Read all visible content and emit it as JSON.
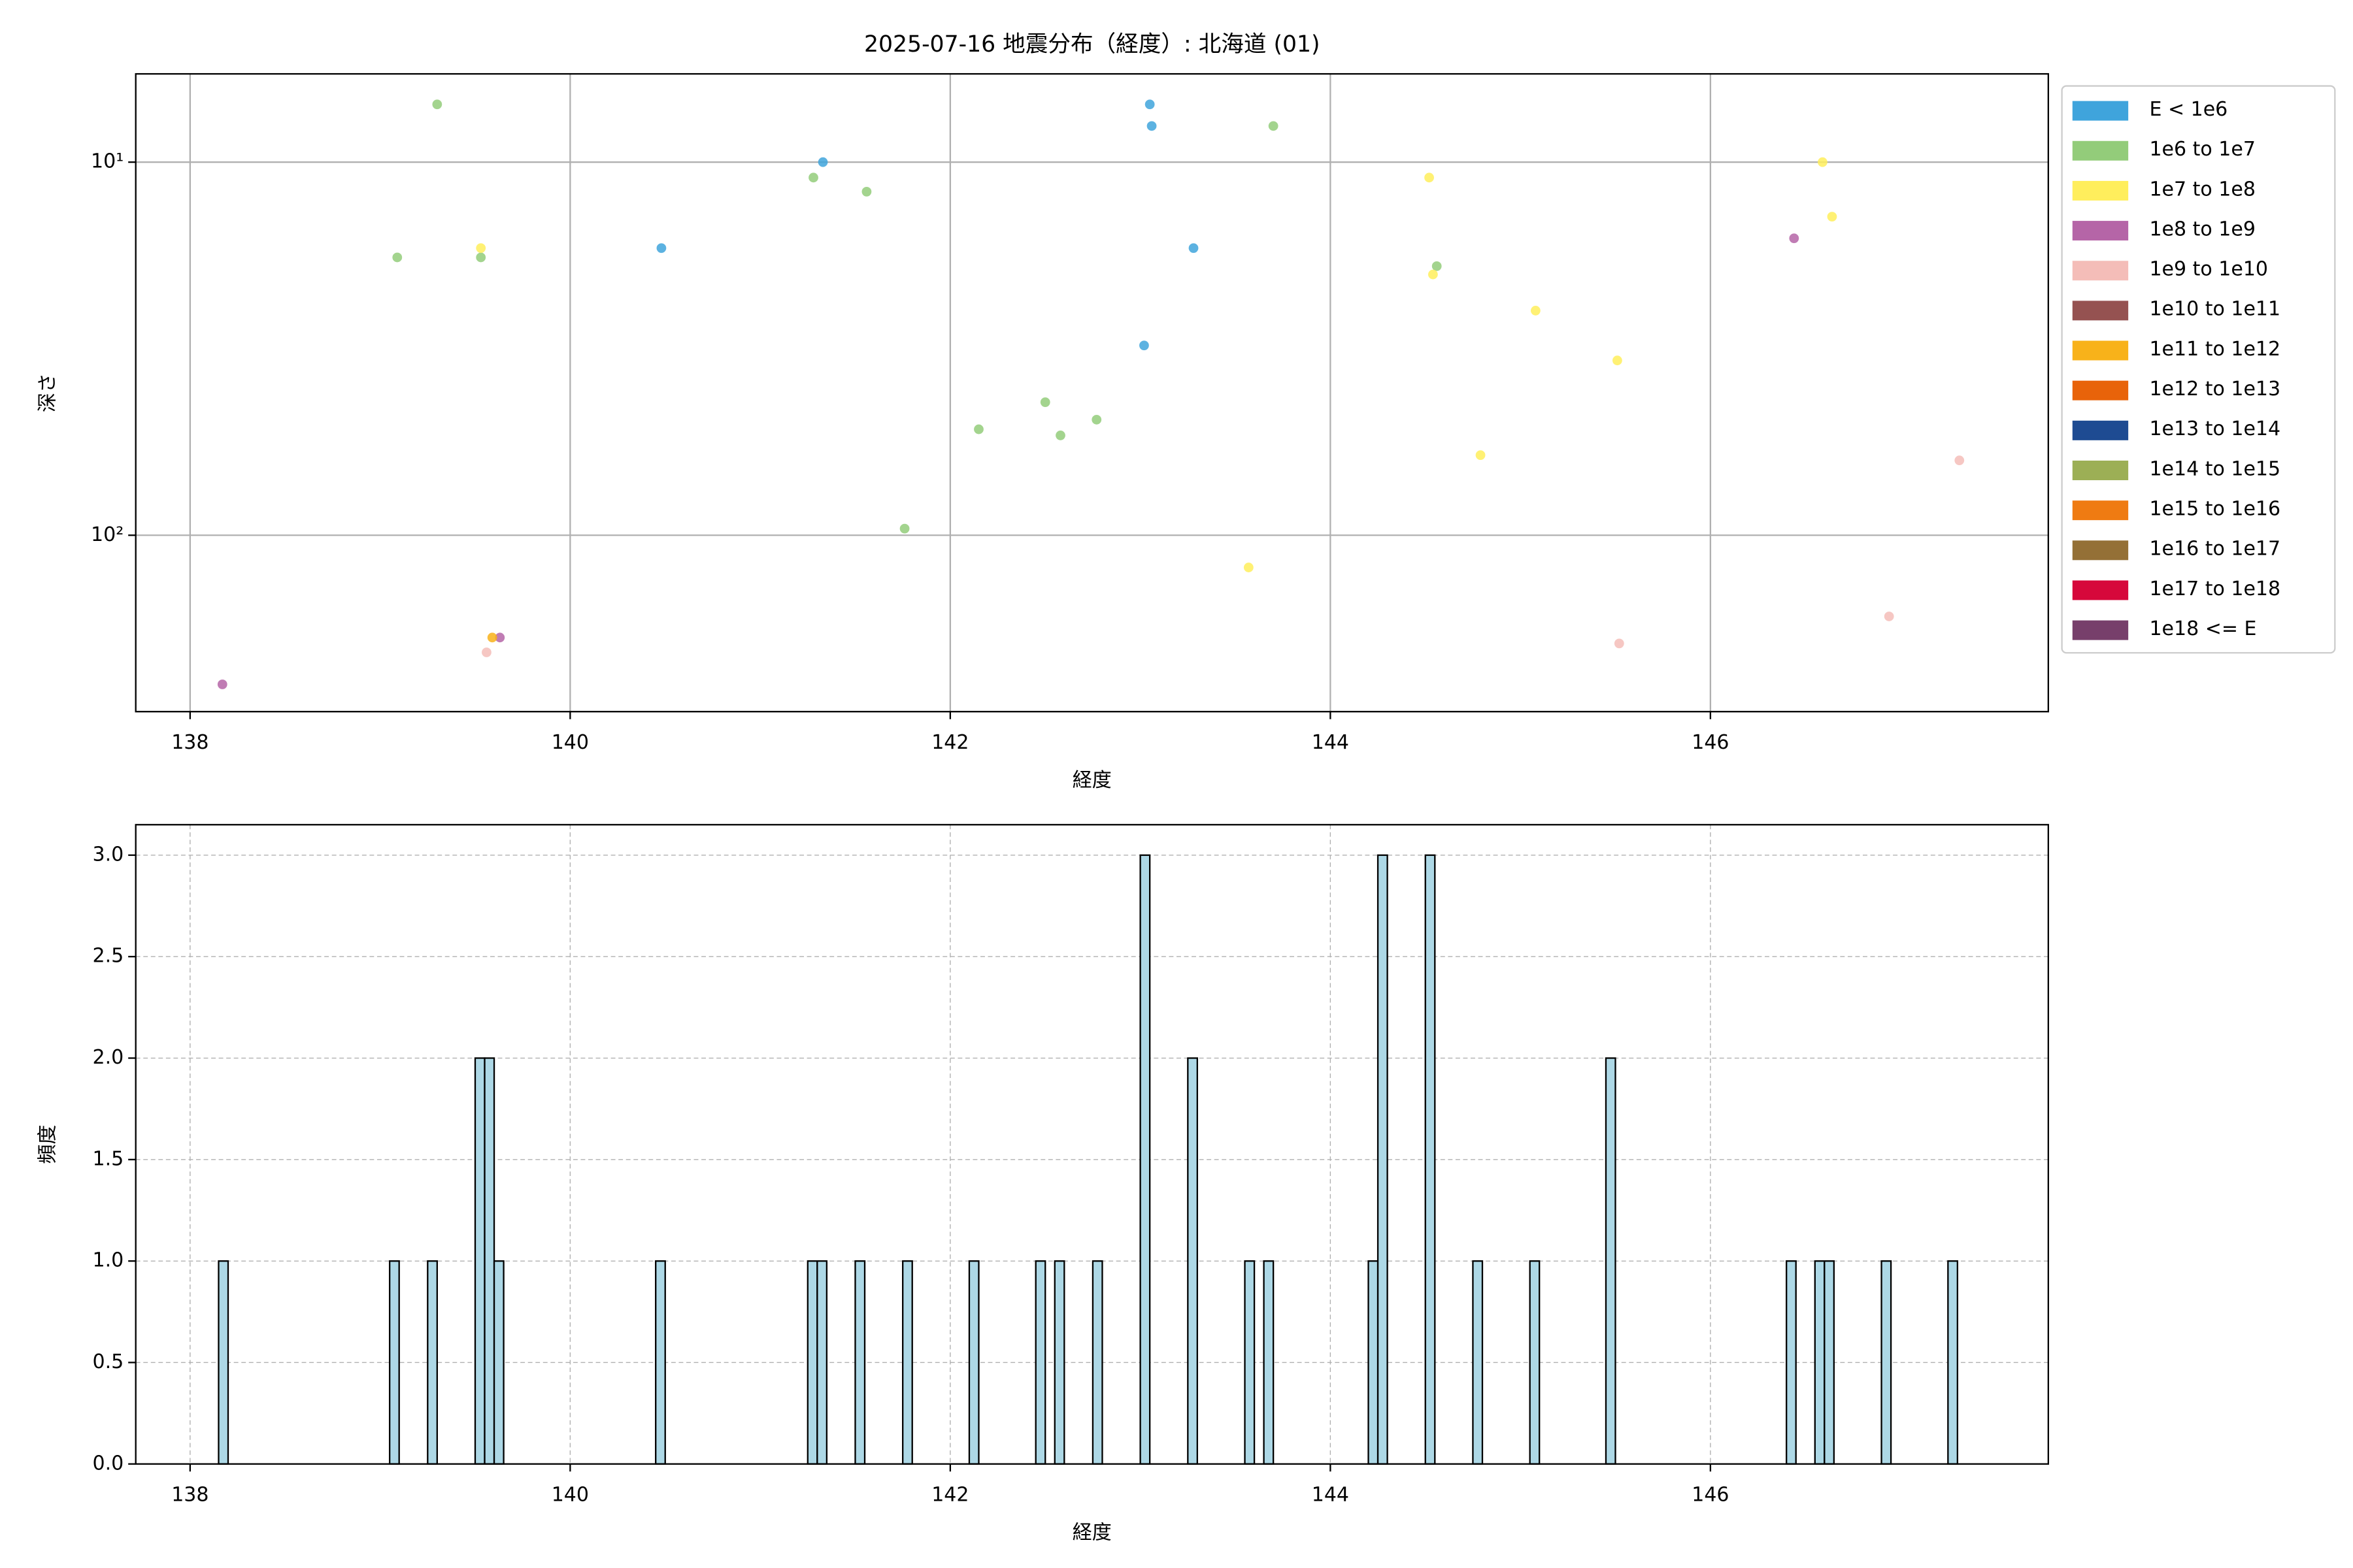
{
  "chart_data": [
    {
      "type": "scatter",
      "title": "2025-07-16 地震分布（経度）: 北海道 (01)",
      "xlabel": "経度",
      "ylabel": "深さ",
      "xlim": [
        137.714,
        147.778
      ],
      "xticks": [
        138,
        140,
        142,
        144,
        146
      ],
      "ylim": [
        297,
        5.8
      ],
      "log_y": true,
      "yticks": [
        {
          "value": 10,
          "label": "10¹"
        },
        {
          "value": 100,
          "label": "10²"
        }
      ],
      "grid": true,
      "legend": "outside-right",
      "series": [
        {
          "name": "E < 1e6",
          "color": "#3fa4dc",
          "x": [
            140.48,
            141.33,
            143.05,
            143.06,
            143.28,
            143.02
          ],
          "values": [
            17,
            10,
            7,
            8,
            17,
            31
          ]
        },
        {
          "name": "1e6 to 1e7",
          "color": "#93cc7a",
          "x": [
            139.3,
            139.09,
            139.53,
            141.28,
            141.56,
            143.7,
            144.56,
            142.5,
            142.15,
            142.58,
            142.77,
            141.76
          ],
          "values": [
            7,
            18,
            18,
            11,
            12,
            8,
            19,
            44,
            52,
            54,
            49,
            96
          ]
        },
        {
          "name": "1e7 to 1e8",
          "color": "#ffee5c",
          "x": [
            139.53,
            144.52,
            144.54,
            145.08,
            145.51,
            146.59,
            146.64,
            144.79,
            143.57
          ],
          "values": [
            17,
            11,
            20,
            25,
            34,
            10,
            14,
            61,
            122
          ]
        },
        {
          "name": "1e8 to 1e9",
          "color": "#b565a7",
          "x": [
            146.44,
            139.63,
            138.17
          ],
          "values": [
            16,
            188,
            251
          ]
        },
        {
          "name": "1e9 to 1e10",
          "color": "#f4bdb8",
          "x": [
            147.31,
            146.94,
            145.52,
            139.56
          ],
          "values": [
            63,
            165,
            195,
            206
          ]
        },
        {
          "name": "1e10 to 1e11",
          "color": "#955251",
          "x": [],
          "values": []
        },
        {
          "name": "1e11 to 1e12",
          "color": "#f8b21a",
          "x": [
            139.59
          ],
          "values": [
            188
          ]
        },
        {
          "name": "1e12 to 1e13",
          "color": "#e8630a",
          "x": [],
          "values": []
        },
        {
          "name": "1e13 to 1e14",
          "color": "#1e4b92",
          "x": [],
          "values": []
        },
        {
          "name": "1e14 to 1e15",
          "color": "#9caf55",
          "x": [],
          "values": []
        },
        {
          "name": "1e15 to 1e16",
          "color": "#ef7b12",
          "x": [],
          "values": []
        },
        {
          "name": "1e16 to 1e17",
          "color": "#947036",
          "x": [],
          "values": []
        },
        {
          "name": "1e17 to 1e18",
          "color": "#d6083b",
          "x": [],
          "values": []
        },
        {
          "name": "1e18 <= E",
          "color": "#773f6b",
          "x": [],
          "values": []
        }
      ]
    },
    {
      "type": "histogram",
      "xlabel": "経度",
      "ylabel": "頻度",
      "color": "#add8e6",
      "edgecolor": "#000000",
      "xlim": [
        137.714,
        147.778
      ],
      "xticks": [
        138,
        140,
        142,
        144,
        146
      ],
      "ylim": [
        0,
        3.15
      ],
      "yticks": [
        {
          "value": 0,
          "label": "0.0"
        },
        0.5,
        {
          "value": 1,
          "label": "1.0"
        },
        1.5,
        {
          "value": 2,
          "label": "2.0"
        },
        2.5,
        {
          "value": 3,
          "label": "3.0"
        }
      ],
      "grid": true,
      "grid_style": "dashed",
      "bins": [
        138.15,
        138.2,
        138.25,
        138.3,
        138.35,
        138.4,
        138.45,
        138.5,
        138.55,
        138.6,
        138.65,
        138.7,
        138.75,
        138.8,
        138.85,
        138.9,
        138.95,
        139,
        139.05,
        139.1,
        139.15,
        139.2,
        139.25,
        139.3,
        139.35,
        139.4,
        139.45,
        139.5,
        139.55,
        139.6,
        139.65,
        139.7,
        139.75,
        139.8,
        139.85,
        139.9,
        139.95,
        140,
        140.05,
        140.1,
        140.15,
        140.2,
        140.25,
        140.3,
        140.35,
        140.4,
        140.45,
        140.5,
        140.55,
        140.6,
        140.65,
        140.7,
        140.75,
        140.8,
        140.85,
        140.9,
        140.95,
        141,
        141.05,
        141.1,
        141.15,
        141.2,
        141.25,
        141.3,
        141.35,
        141.4,
        141.45,
        141.5,
        141.55,
        141.6,
        141.65,
        141.7,
        141.75,
        141.8,
        141.85,
        141.9,
        141.95,
        142,
        142.05,
        142.1,
        142.15,
        142.2,
        142.25,
        142.3,
        142.35,
        142.4,
        142.45,
        142.5,
        142.55,
        142.6,
        142.65,
        142.7,
        142.75,
        142.8,
        142.85,
        142.9,
        142.95,
        143,
        143.05,
        143.1,
        143.15,
        143.2,
        143.25,
        143.3,
        143.35,
        143.4,
        143.45,
        143.5,
        143.55,
        143.6,
        143.65,
        143.7,
        143.75,
        143.8,
        143.85,
        143.9,
        143.95,
        144,
        144.05,
        144.1,
        144.15,
        144.2,
        144.25,
        144.3,
        144.35,
        144.4,
        144.45,
        144.5,
        144.55,
        144.6,
        144.65,
        144.7,
        144.75,
        144.8,
        144.85,
        144.9,
        144.95,
        145,
        145.05,
        145.1,
        145.15,
        145.2,
        145.25,
        145.3,
        145.35,
        145.4,
        145.45,
        145.5,
        145.55,
        145.6,
        145.65,
        145.7,
        145.75,
        145.8,
        145.85,
        145.9,
        145.95,
        146,
        146.05,
        146.1,
        146.15,
        146.2,
        146.25,
        146.3,
        146.35,
        146.4,
        146.45,
        146.5,
        146.55,
        146.6,
        146.65,
        146.7,
        146.75,
        146.8,
        146.85,
        146.9,
        146.95,
        147,
        147.05,
        147.1,
        147.15,
        147.2,
        147.25,
        147.3,
        147.35
      ],
      "values": [
        1,
        0,
        0,
        0,
        0,
        0,
        0,
        0,
        0,
        0,
        0,
        0,
        0,
        0,
        0,
        0,
        0,
        0,
        1,
        0,
        0,
        0,
        1,
        0,
        0,
        0,
        0,
        2,
        2,
        1,
        0,
        0,
        0,
        0,
        0,
        0,
        0,
        0,
        0,
        0,
        0,
        0,
        0,
        0,
        0,
        0,
        1,
        0,
        0,
        0,
        0,
        0,
        0,
        0,
        0,
        0,
        0,
        0,
        0,
        0,
        0,
        0,
        1,
        1,
        0,
        0,
        0,
        1,
        0,
        0,
        0,
        0,
        1,
        0,
        0,
        0,
        0,
        0,
        0,
        1,
        0,
        0,
        0,
        0,
        0,
        0,
        1,
        0,
        1,
        0,
        0,
        0,
        1,
        0,
        0,
        0,
        0,
        3,
        0,
        0,
        0,
        0,
        2,
        0,
        0,
        0,
        0,
        0,
        1,
        0,
        1,
        0,
        0,
        0,
        0,
        0,
        0,
        0,
        0,
        0,
        0,
        1,
        3,
        0,
        0,
        0,
        0,
        3,
        0,
        0,
        0,
        0,
        1,
        0,
        0,
        0,
        0,
        0,
        1,
        0,
        0,
        0,
        0,
        0,
        0,
        0,
        2,
        0,
        0,
        0,
        0,
        0,
        0,
        0,
        0,
        0,
        0,
        0,
        0,
        0,
        0,
        0,
        0,
        0,
        0,
        1,
        0,
        0,
        1,
        1,
        0,
        0,
        0,
        0,
        0,
        1,
        0,
        0,
        0,
        0,
        0,
        0,
        1,
        0
      ]
    }
  ]
}
